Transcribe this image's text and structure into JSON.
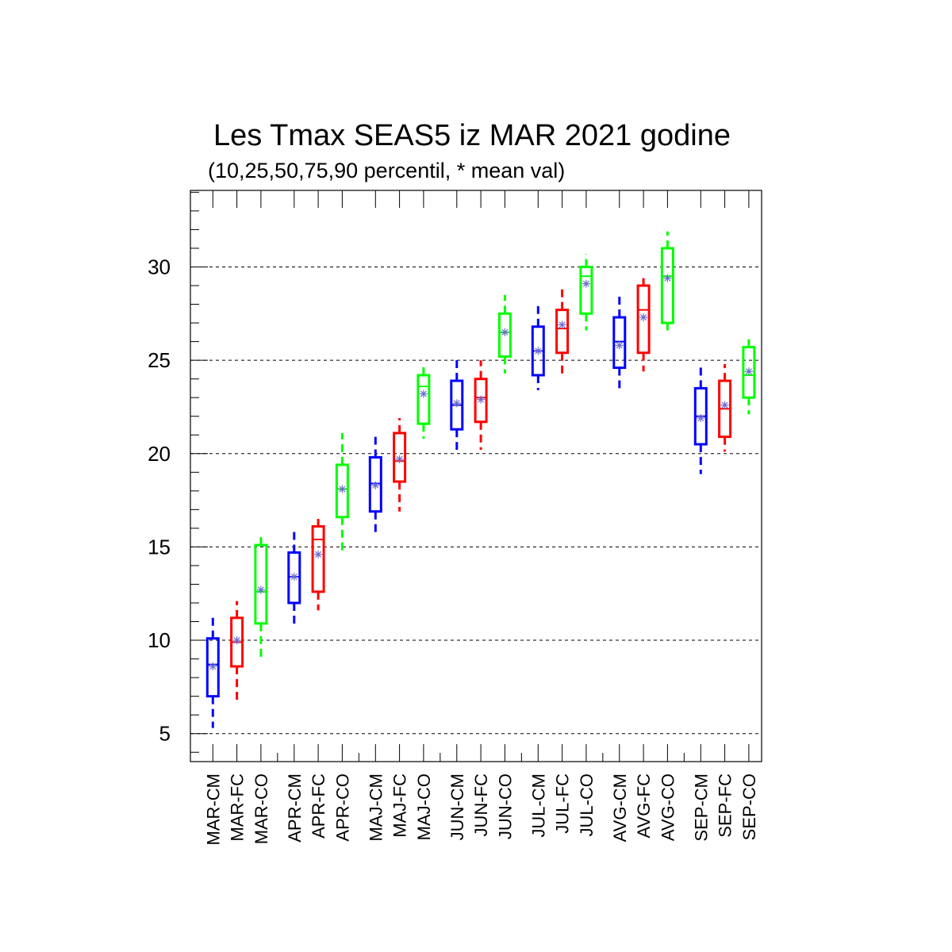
{
  "chart_data": {
    "type": "box",
    "title": "Les Tmax SEAS5 iz MAR 2021 godine",
    "subtitle": "(10,25,50,75,90 percentil, * mean val)",
    "xlabel": "",
    "ylabel": "",
    "ylim": [
      3.5,
      34.1
    ],
    "yticks": [
      5,
      10,
      15,
      20,
      25,
      30
    ],
    "grid": "horizontal-dashed",
    "legend": "none",
    "colors": {
      "CM": "#0000ff",
      "FC": "#ff0000",
      "CO": "#00ff00",
      "mean": "#6b6bd0"
    },
    "categories": [
      "MAR-CM",
      "MAR-FC",
      "MAR-CO",
      "APR-CM",
      "APR-FC",
      "APR-CO",
      "MAJ-CM",
      "MAJ-FC",
      "MAJ-CO",
      "JUN-CM",
      "JUN-FC",
      "JUN-CO",
      "JUL-CM",
      "JUL-FC",
      "JUL-CO",
      "AVG-CM",
      "AVG-FC",
      "AVG-CO",
      "SEP-CM",
      "SEP-FC",
      "SEP-CO"
    ],
    "boxes": [
      {
        "label": "MAR-CM",
        "kind": "CM",
        "p10": 5.3,
        "p25": 7.0,
        "p50": 8.7,
        "p75": 10.1,
        "p90": 11.4,
        "mean": 8.6
      },
      {
        "label": "MAR-FC",
        "kind": "FC",
        "p10": 6.7,
        "p25": 8.6,
        "p50": 9.9,
        "p75": 11.2,
        "p90": 12.1,
        "mean": 10.0
      },
      {
        "label": "MAR-CO",
        "kind": "CO",
        "p10": 8.9,
        "p25": 10.9,
        "p50": 12.6,
        "p75": 15.1,
        "p90": 15.7,
        "mean": 12.7
      },
      {
        "label": "APR-CM",
        "kind": "CM",
        "p10": 10.7,
        "p25": 12.0,
        "p50": 13.4,
        "p75": 14.7,
        "p90": 15.8,
        "mean": 13.4
      },
      {
        "label": "APR-FC",
        "kind": "FC",
        "p10": 11.6,
        "p25": 12.6,
        "p50": 15.4,
        "p75": 16.1,
        "p90": 16.5,
        "mean": 14.6
      },
      {
        "label": "APR-CO",
        "kind": "CO",
        "p10": 14.6,
        "p25": 16.6,
        "p50": 18.1,
        "p75": 19.4,
        "p90": 21.1,
        "mean": 18.1
      },
      {
        "label": "MAJ-CM",
        "kind": "CM",
        "p10": 15.8,
        "p25": 16.9,
        "p50": 18.4,
        "p75": 19.8,
        "p90": 20.9,
        "mean": 18.3
      },
      {
        "label": "MAJ-FC",
        "kind": "FC",
        "p10": 16.9,
        "p25": 18.5,
        "p50": 19.6,
        "p75": 21.1,
        "p90": 21.9,
        "mean": 19.7
      },
      {
        "label": "MAJ-CO",
        "kind": "CO",
        "p10": 20.8,
        "p25": 21.6,
        "p50": 23.6,
        "p75": 24.2,
        "p90": 24.8,
        "mean": 23.2
      },
      {
        "label": "JUN-CM",
        "kind": "CM",
        "p10": 20.2,
        "p25": 21.3,
        "p50": 22.6,
        "p75": 23.9,
        "p90": 25.2,
        "mean": 22.7
      },
      {
        "label": "JUN-FC",
        "kind": "FC",
        "p10": 20.2,
        "p25": 21.7,
        "p50": 23.0,
        "p75": 24.0,
        "p90": 25.0,
        "mean": 22.9
      },
      {
        "label": "JUN-CO",
        "kind": "CO",
        "p10": 24.3,
        "p25": 25.2,
        "p50": 26.5,
        "p75": 27.5,
        "p90": 28.5,
        "mean": 26.5
      },
      {
        "label": "JUL-CM",
        "kind": "CM",
        "p10": 23.4,
        "p25": 24.2,
        "p50": 25.5,
        "p75": 26.8,
        "p90": 27.9,
        "mean": 25.5
      },
      {
        "label": "JUL-FC",
        "kind": "FC",
        "p10": 24.1,
        "p25": 25.4,
        "p50": 26.7,
        "p75": 27.7,
        "p90": 28.8,
        "mean": 26.9
      },
      {
        "label": "JUL-CO",
        "kind": "CO",
        "p10": 26.6,
        "p25": 27.5,
        "p50": 29.5,
        "p75": 30.0,
        "p90": 30.7,
        "mean": 29.1
      },
      {
        "label": "AVG-CM",
        "kind": "CM",
        "p10": 23.5,
        "p25": 24.6,
        "p50": 26.0,
        "p75": 27.3,
        "p90": 28.6,
        "mean": 25.8
      },
      {
        "label": "AVG-FC",
        "kind": "FC",
        "p10": 24.4,
        "p25": 25.4,
        "p50": 27.7,
        "p75": 29.0,
        "p90": 29.4,
        "mean": 27.3
      },
      {
        "label": "AVG-CO",
        "kind": "CO",
        "p10": 26.6,
        "p25": 27.0,
        "p50": 29.5,
        "p75": 31.0,
        "p90": 31.9,
        "mean": 29.4
      },
      {
        "label": "SEP-CM",
        "kind": "CM",
        "p10": 18.9,
        "p25": 20.5,
        "p50": 22.0,
        "p75": 23.5,
        "p90": 24.8,
        "mean": 21.9
      },
      {
        "label": "SEP-FC",
        "kind": "FC",
        "p10": 20.1,
        "p25": 20.9,
        "p50": 22.4,
        "p75": 23.9,
        "p90": 24.8,
        "mean": 22.6
      },
      {
        "label": "SEP-CO",
        "kind": "CO",
        "p10": 22.1,
        "p25": 23.0,
        "p50": 24.2,
        "p75": 25.7,
        "p90": 26.2,
        "mean": 24.4
      }
    ]
  }
}
